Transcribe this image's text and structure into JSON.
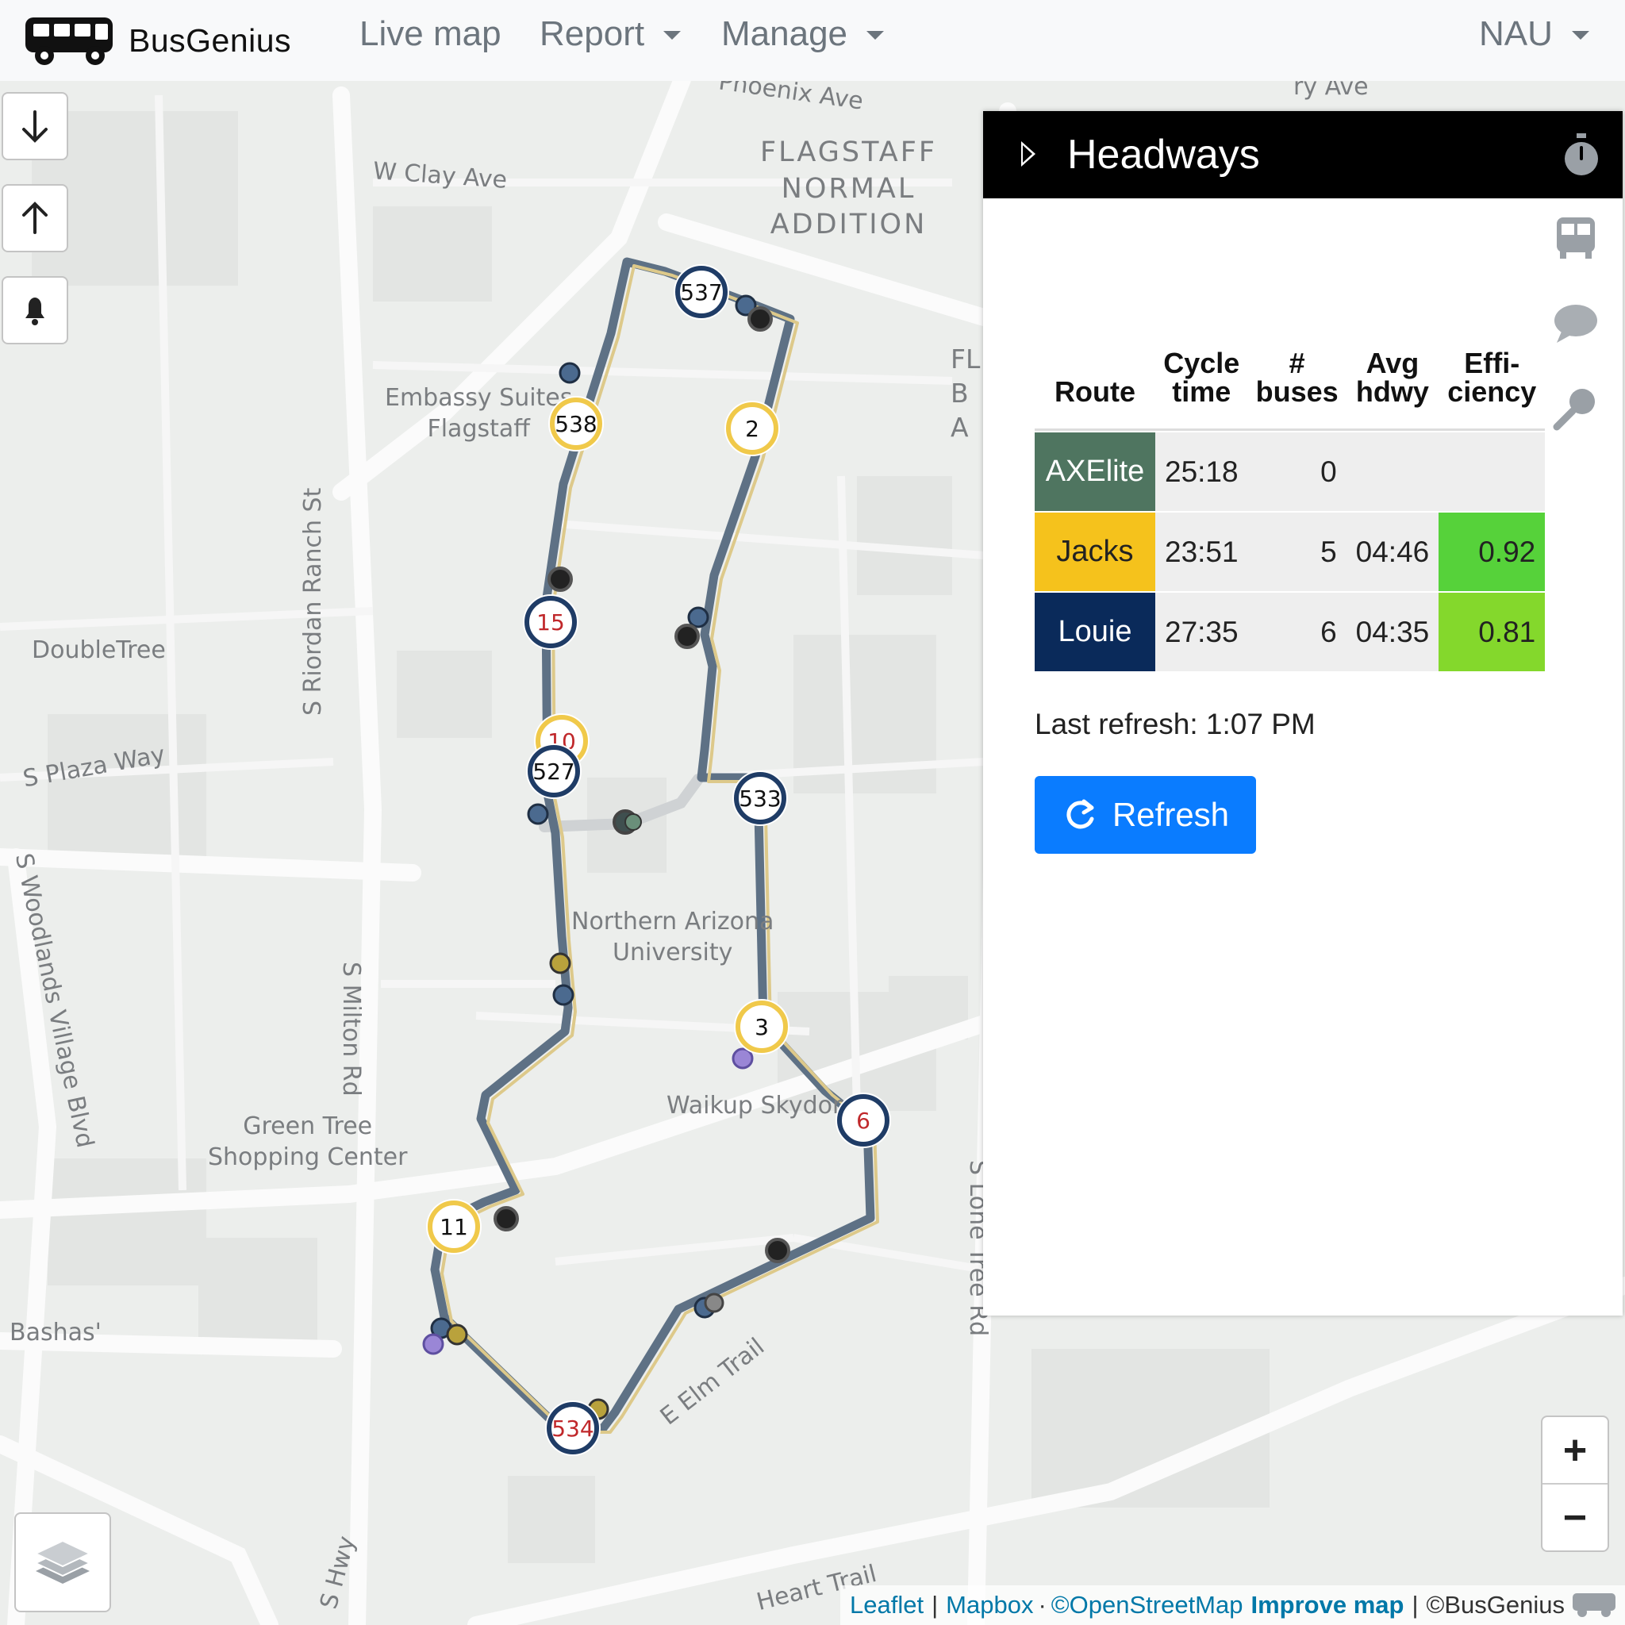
{
  "navbar": {
    "brand": "BusGenius",
    "items": [
      {
        "label": "Live map",
        "dropdown": false
      },
      {
        "label": "Report",
        "dropdown": true
      },
      {
        "label": "Manage",
        "dropdown": true
      }
    ],
    "account": "NAU"
  },
  "map_labels": {
    "phoenix_ave": "Phoenix Ave",
    "top_right_ave": "ry Ave",
    "clay_ave": "W Clay Ave",
    "normal_addition": [
      "FLAGSTAFF",
      "NORMAL",
      "ADDITION"
    ],
    "fl_partial": [
      "FL",
      "B",
      "A"
    ],
    "embassy": [
      "Embassy Suites",
      "Flagstaff"
    ],
    "doubletree": "DoubleTree",
    "plaza_way": "S Plaza Way",
    "riordan": "S Riordan Ranch St",
    "nau": [
      "Northern Arizona",
      "University"
    ],
    "milton": "S Milton Rd",
    "woodlands": "S Woodlands Village Blvd",
    "green_tree": [
      "Green Tree",
      "Shopping Center"
    ],
    "waikup": "Waikup Skydom",
    "lone_tree": "S Lone Tree Rd",
    "bashas": "Bashas'",
    "elm": "E Elm Trail",
    "heart_trail": "Heart Trail",
    "hwy": "S Hwy"
  },
  "markers": [
    {
      "label": "537",
      "style": "blue"
    },
    {
      "label": "538",
      "style": "yellow"
    },
    {
      "label": "2",
      "style": "yellow"
    },
    {
      "label": "15",
      "style": "blue-red"
    },
    {
      "label": "10",
      "style": "yellow-red"
    },
    {
      "label": "527",
      "style": "blue"
    },
    {
      "label": "533",
      "style": "blue"
    },
    {
      "label": "3",
      "style": "yellow"
    },
    {
      "label": "6",
      "style": "blue-red"
    },
    {
      "label": "11",
      "style": "yellow"
    },
    {
      "label": "534",
      "style": "blue-red"
    }
  ],
  "headways": {
    "title": "Headways",
    "columns": {
      "route": "Route",
      "cycle": [
        "Cycle",
        "time"
      ],
      "buses": [
        "#",
        "buses"
      ],
      "avg": [
        "Avg",
        "hdwy"
      ],
      "eff": [
        "Effi-",
        "ciency"
      ]
    },
    "rows": [
      {
        "route": "AXElite",
        "color": "#4f7560",
        "text_color": "#ffffff",
        "cycle": "25:18",
        "buses": "0",
        "avg": "",
        "eff": "",
        "eff_color": "#eeeeee"
      },
      {
        "route": "Jacks",
        "color": "#f5c21c",
        "text_color": "#222222",
        "cycle": "23:51",
        "buses": "5",
        "avg": "04:46",
        "eff": "0.92",
        "eff_color": "#56d23a"
      },
      {
        "route": "Louie",
        "color": "#0a2a5a",
        "text_color": "#ffffff",
        "cycle": "27:35",
        "buses": "6",
        "avg": "04:35",
        "eff": "0.81",
        "eff_color": "#84d82c"
      }
    ],
    "last_refresh": "Last refresh: 1:07 PM",
    "refresh_button": "Refresh"
  },
  "attribution": {
    "leaflet": "Leaflet",
    "mapbox": "Mapbox",
    "osm": "©OpenStreetMap",
    "improve": "Improve map",
    "busgenius": "©BusGenius"
  },
  "zoom": {
    "in": "+",
    "out": "−"
  },
  "colors": {
    "route_blue": "#5e7185",
    "route_yellow": "#ddc98a",
    "marker_blue": "#1f3c66",
    "marker_yellow": "#f0c94a",
    "marker_red_text": "#c0282b"
  }
}
